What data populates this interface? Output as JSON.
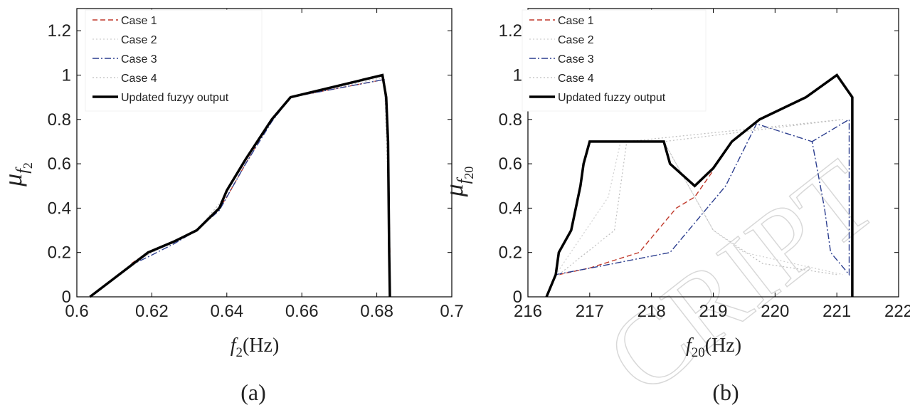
{
  "chart_data": [
    {
      "panel": "(a)",
      "type": "line",
      "xlabel_main": "f",
      "xlabel_sub": "2",
      "xlabel_unit": "(Hz)",
      "ylabel_main": "μ",
      "ylabel_sub1": "f",
      "ylabel_sub2": "2",
      "xlim": [
        0.6,
        0.7
      ],
      "ylim": [
        0,
        1.3
      ],
      "xticks": [
        "0.6",
        "0.62",
        "0.64",
        "0.66",
        "0.68",
        "0.7"
      ],
      "yticks": [
        "0",
        "0.2",
        "0.4",
        "0.6",
        "0.8",
        "1",
        "1.2"
      ],
      "xtick_values": [
        0.6,
        0.62,
        0.64,
        0.66,
        0.68,
        0.7
      ],
      "ytick_values": [
        0,
        0.2,
        0.4,
        0.6,
        0.8,
        1.0,
        1.2
      ],
      "legend_position": "top-left",
      "series": [
        {
          "name": "Case 1",
          "color": "#c0392b",
          "dash": "7,4",
          "width": 1.4,
          "points": [
            [
              0.6145,
              0.15
            ],
            [
              0.619,
              0.2
            ],
            [
              0.626,
              0.25
            ],
            [
              0.632,
              0.3
            ],
            [
              0.638,
              0.4
            ],
            [
              0.64,
              0.45
            ],
            [
              0.645,
              0.6
            ],
            [
              0.652,
              0.8
            ],
            [
              0.657,
              0.9
            ],
            [
              0.682,
              0.98
            ],
            [
              0.683,
              0.7
            ],
            [
              0.6835,
              0.2
            ]
          ]
        },
        {
          "name": "Case 2",
          "color": "#cfcfcf",
          "dash": "2,3",
          "width": 1.2,
          "points": [
            [
              0.614,
              0.14
            ],
            [
              0.619,
              0.19
            ],
            [
              0.626,
              0.25
            ],
            [
              0.632,
              0.3
            ],
            [
              0.638,
              0.41
            ],
            [
              0.64,
              0.46
            ],
            [
              0.645,
              0.6
            ],
            [
              0.652,
              0.8
            ],
            [
              0.657,
              0.9
            ],
            [
              0.682,
              0.98
            ],
            [
              0.6832,
              0.5
            ],
            [
              0.6835,
              0.1
            ]
          ]
        },
        {
          "name": "Case 3",
          "color": "#2c3e8f",
          "dash": "9,3,2,3",
          "width": 1.4,
          "points": [
            [
              0.614,
              0.14
            ],
            [
              0.619,
              0.18
            ],
            [
              0.626,
              0.24
            ],
            [
              0.632,
              0.3
            ],
            [
              0.638,
              0.39
            ],
            [
              0.64,
              0.45
            ],
            [
              0.645,
              0.6
            ],
            [
              0.652,
              0.79
            ],
            [
              0.657,
              0.9
            ],
            [
              0.682,
              0.98
            ],
            [
              0.6832,
              0.6
            ],
            [
              0.6835,
              0.1
            ]
          ]
        },
        {
          "name": "Case 4",
          "color": "#bdbdbd",
          "dash": "2,3",
          "width": 1.2,
          "points": [
            [
              0.6145,
              0.15
            ],
            [
              0.62,
              0.2
            ],
            [
              0.627,
              0.26
            ],
            [
              0.632,
              0.3
            ],
            [
              0.638,
              0.42
            ],
            [
              0.64,
              0.47
            ],
            [
              0.645,
              0.62
            ],
            [
              0.652,
              0.8
            ],
            [
              0.657,
              0.9
            ],
            [
              0.682,
              0.99
            ],
            [
              0.6832,
              0.4
            ],
            [
              0.6835,
              0.05
            ]
          ]
        },
        {
          "name": "Updated fuzyy output",
          "color": "#000000",
          "dash": "",
          "width": 3.5,
          "points": [
            [
              0.6035,
              0
            ],
            [
              0.619,
              0.2
            ],
            [
              0.626,
              0.25
            ],
            [
              0.632,
              0.3
            ],
            [
              0.638,
              0.4
            ],
            [
              0.64,
              0.48
            ],
            [
              0.645,
              0.62
            ],
            [
              0.652,
              0.8
            ],
            [
              0.657,
              0.9
            ],
            [
              0.6815,
              1.0
            ],
            [
              0.6825,
              0.9
            ],
            [
              0.683,
              0.7
            ],
            [
              0.6833,
              0.2
            ],
            [
              0.6835,
              0
            ]
          ]
        }
      ]
    },
    {
      "panel": "(b)",
      "type": "line",
      "xlabel_main": "f",
      "xlabel_sub": "20",
      "xlabel_unit": "(Hz)",
      "ylabel_main": "μ",
      "ylabel_sub1": "f",
      "ylabel_sub2": "20",
      "xlim": [
        216,
        222
      ],
      "ylim": [
        0,
        1.3
      ],
      "xticks": [
        "216",
        "217",
        "218",
        "219",
        "220",
        "221",
        "222"
      ],
      "yticks": [
        "0",
        "0.2",
        "0.4",
        "0.6",
        "0.8",
        "1",
        "1.2"
      ],
      "xtick_values": [
        216,
        217,
        218,
        219,
        220,
        221,
        222
      ],
      "ytick_values": [
        0,
        0.2,
        0.4,
        0.6,
        0.8,
        1.0,
        1.2
      ],
      "legend_position": "top-left",
      "series": [
        {
          "name": "Case 1",
          "color": "#c0392b",
          "dash": "7,4",
          "width": 1.4,
          "points": [
            [
              216.5,
              0.1
            ],
            [
              217.0,
              0.13
            ],
            [
              217.8,
              0.2
            ],
            [
              218.4,
              0.4
            ],
            [
              218.7,
              0.45
            ],
            [
              219.0,
              0.57
            ]
          ]
        },
        {
          "name": "Case 2",
          "color": "#cfcfcf",
          "dash": "2,3",
          "width": 1.2,
          "points": [
            [
              216.45,
              0.1
            ],
            [
              217.3,
              0.45
            ],
            [
              217.5,
              0.7
            ],
            [
              218.2,
              0.7
            ],
            [
              218.6,
              0.5
            ],
            [
              219.0,
              0.3
            ],
            [
              219.5,
              0.2
            ],
            [
              221.1,
              0.1
            ]
          ]
        },
        {
          "name": "Case 3",
          "color": "#2c3e8f",
          "dash": "9,3,2,3",
          "width": 1.4,
          "points": [
            [
              216.45,
              0.1
            ],
            [
              217.2,
              0.14
            ],
            [
              218.3,
              0.2
            ],
            [
              219.2,
              0.5
            ],
            [
              219.7,
              0.78
            ],
            [
              220.6,
              0.7
            ],
            [
              220.8,
              0.4
            ],
            [
              220.9,
              0.2
            ],
            [
              221.2,
              0.1
            ],
            [
              221.2,
              0.8
            ],
            [
              220.6,
              0.7
            ]
          ]
        },
        {
          "name": "Case 4",
          "color": "#bdbdbd",
          "dash": "2,3",
          "width": 1.2,
          "points": [
            [
              216.5,
              0.1
            ],
            [
              217.4,
              0.3
            ],
            [
              217.6,
              0.7
            ],
            [
              221.1,
              0.8
            ],
            [
              218.2,
              0.7
            ],
            [
              219.0,
              0.3
            ],
            [
              219.8,
              0.15
            ],
            [
              221.0,
              0.1
            ]
          ]
        },
        {
          "name": "Updated fuzzy output",
          "color": "#000000",
          "dash": "",
          "width": 3.5,
          "points": [
            [
              216.3,
              0
            ],
            [
              216.45,
              0.1
            ],
            [
              216.5,
              0.2
            ],
            [
              216.7,
              0.3
            ],
            [
              216.85,
              0.5
            ],
            [
              216.9,
              0.6
            ],
            [
              217.0,
              0.7
            ],
            [
              218.2,
              0.7
            ],
            [
              218.3,
              0.6
            ],
            [
              218.7,
              0.5
            ],
            [
              219.0,
              0.58
            ],
            [
              219.3,
              0.7
            ],
            [
              219.75,
              0.8
            ],
            [
              220.5,
              0.9
            ],
            [
              221.0,
              1.0
            ],
            [
              221.25,
              0.9
            ],
            [
              221.25,
              0
            ]
          ]
        }
      ]
    }
  ]
}
